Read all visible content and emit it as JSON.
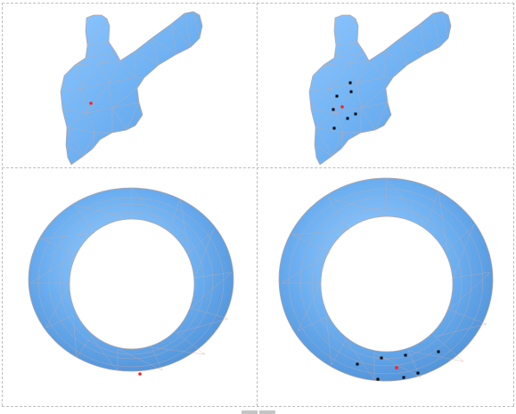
{
  "colors": {
    "background": "#ffffff",
    "mesh_fill": "#6aaef0",
    "mesh_shade": "#4d8fd6",
    "mesh_highlight": "#8cc6ff",
    "wire": "#c9a9a4",
    "selected_vertex": "#ff2020",
    "neighbor_vertex": "#000000",
    "divider": "#bdbdbd"
  },
  "panels": [
    {
      "id": "hand-single",
      "shape": "hand",
      "selected_vertices": 1,
      "neighbor_vertices": 0
    },
    {
      "id": "hand-neighbors",
      "shape": "hand",
      "selected_vertices": 1,
      "neighbor_vertices": 7
    },
    {
      "id": "torus-single",
      "shape": "torus",
      "selected_vertices": 1,
      "neighbor_vertices": 0
    },
    {
      "id": "torus-neighbors",
      "shape": "torus",
      "selected_vertices": 1,
      "neighbor_vertices": 7
    }
  ]
}
